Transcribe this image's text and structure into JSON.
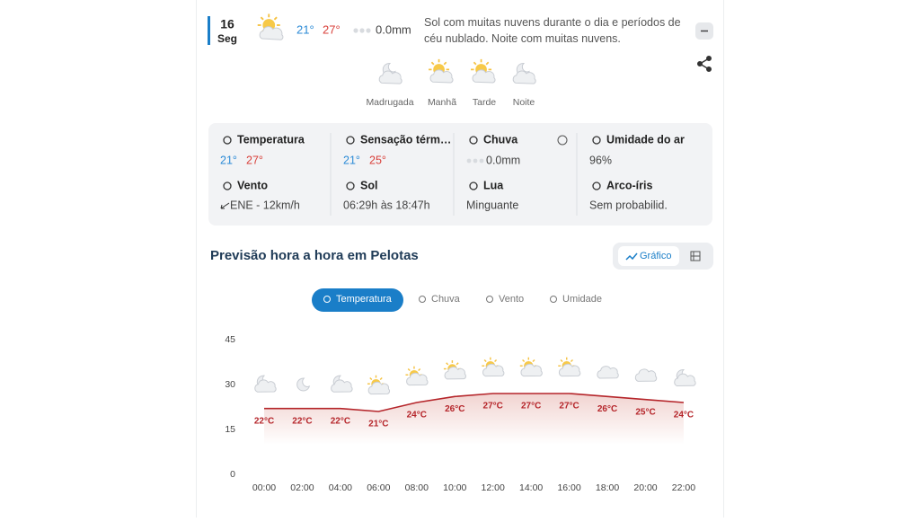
{
  "day": {
    "date": "16",
    "weekday": "Seg",
    "temp_min": "21°",
    "temp_max": "27°",
    "rain": "0.0mm",
    "description": "Sol com muitas nuvens durante o dia e períodos de céu nublado. Noite com muitas nuvens."
  },
  "periods": [
    "Madrugada",
    "Manhã",
    "Tarde",
    "Noite"
  ],
  "details": [
    {
      "label": "Temperatura",
      "values": [
        "21°",
        "27°"
      ]
    },
    {
      "label": "Sensação térm…",
      "values": [
        "21°",
        "25°"
      ]
    },
    {
      "label": "Chuva",
      "values": [
        "0.0mm"
      ]
    },
    {
      "label": "Umidade do ar",
      "values": [
        "96%"
      ]
    },
    {
      "label": "Vento",
      "values": [
        "ENE - 12km/h"
      ]
    },
    {
      "label": "Sol",
      "values": [
        "06:29h às 18:47h"
      ]
    },
    {
      "label": "Lua",
      "values": [
        "Minguante"
      ]
    },
    {
      "label": "Arco-íris",
      "values": [
        "Sem probabilid."
      ]
    }
  ],
  "hourly": {
    "title": "Previsão hora a hora em Pelotas",
    "view_toggle": [
      "Gráfico"
    ],
    "tabs": [
      "Temperatura",
      "Chuva",
      "Vento",
      "Umidade"
    ]
  },
  "chart_data": {
    "type": "line",
    "categories": [
      "00:00",
      "02:00",
      "04:00",
      "06:00",
      "08:00",
      "10:00",
      "12:00",
      "14:00",
      "16:00",
      "18:00",
      "20:00",
      "22:00"
    ],
    "values": [
      22,
      22,
      22,
      21,
      24,
      26,
      27,
      27,
      27,
      26,
      25,
      24
    ],
    "value_labels": [
      "22°C",
      "22°C",
      "22°C",
      "21°C",
      "24°C",
      "26°C",
      "27°C",
      "27°C",
      "27°C",
      "26°C",
      "25°C",
      "24°C"
    ],
    "color": "#b5252a",
    "ylim": [
      0,
      45
    ],
    "yticks": [
      0,
      15,
      30,
      45
    ]
  }
}
